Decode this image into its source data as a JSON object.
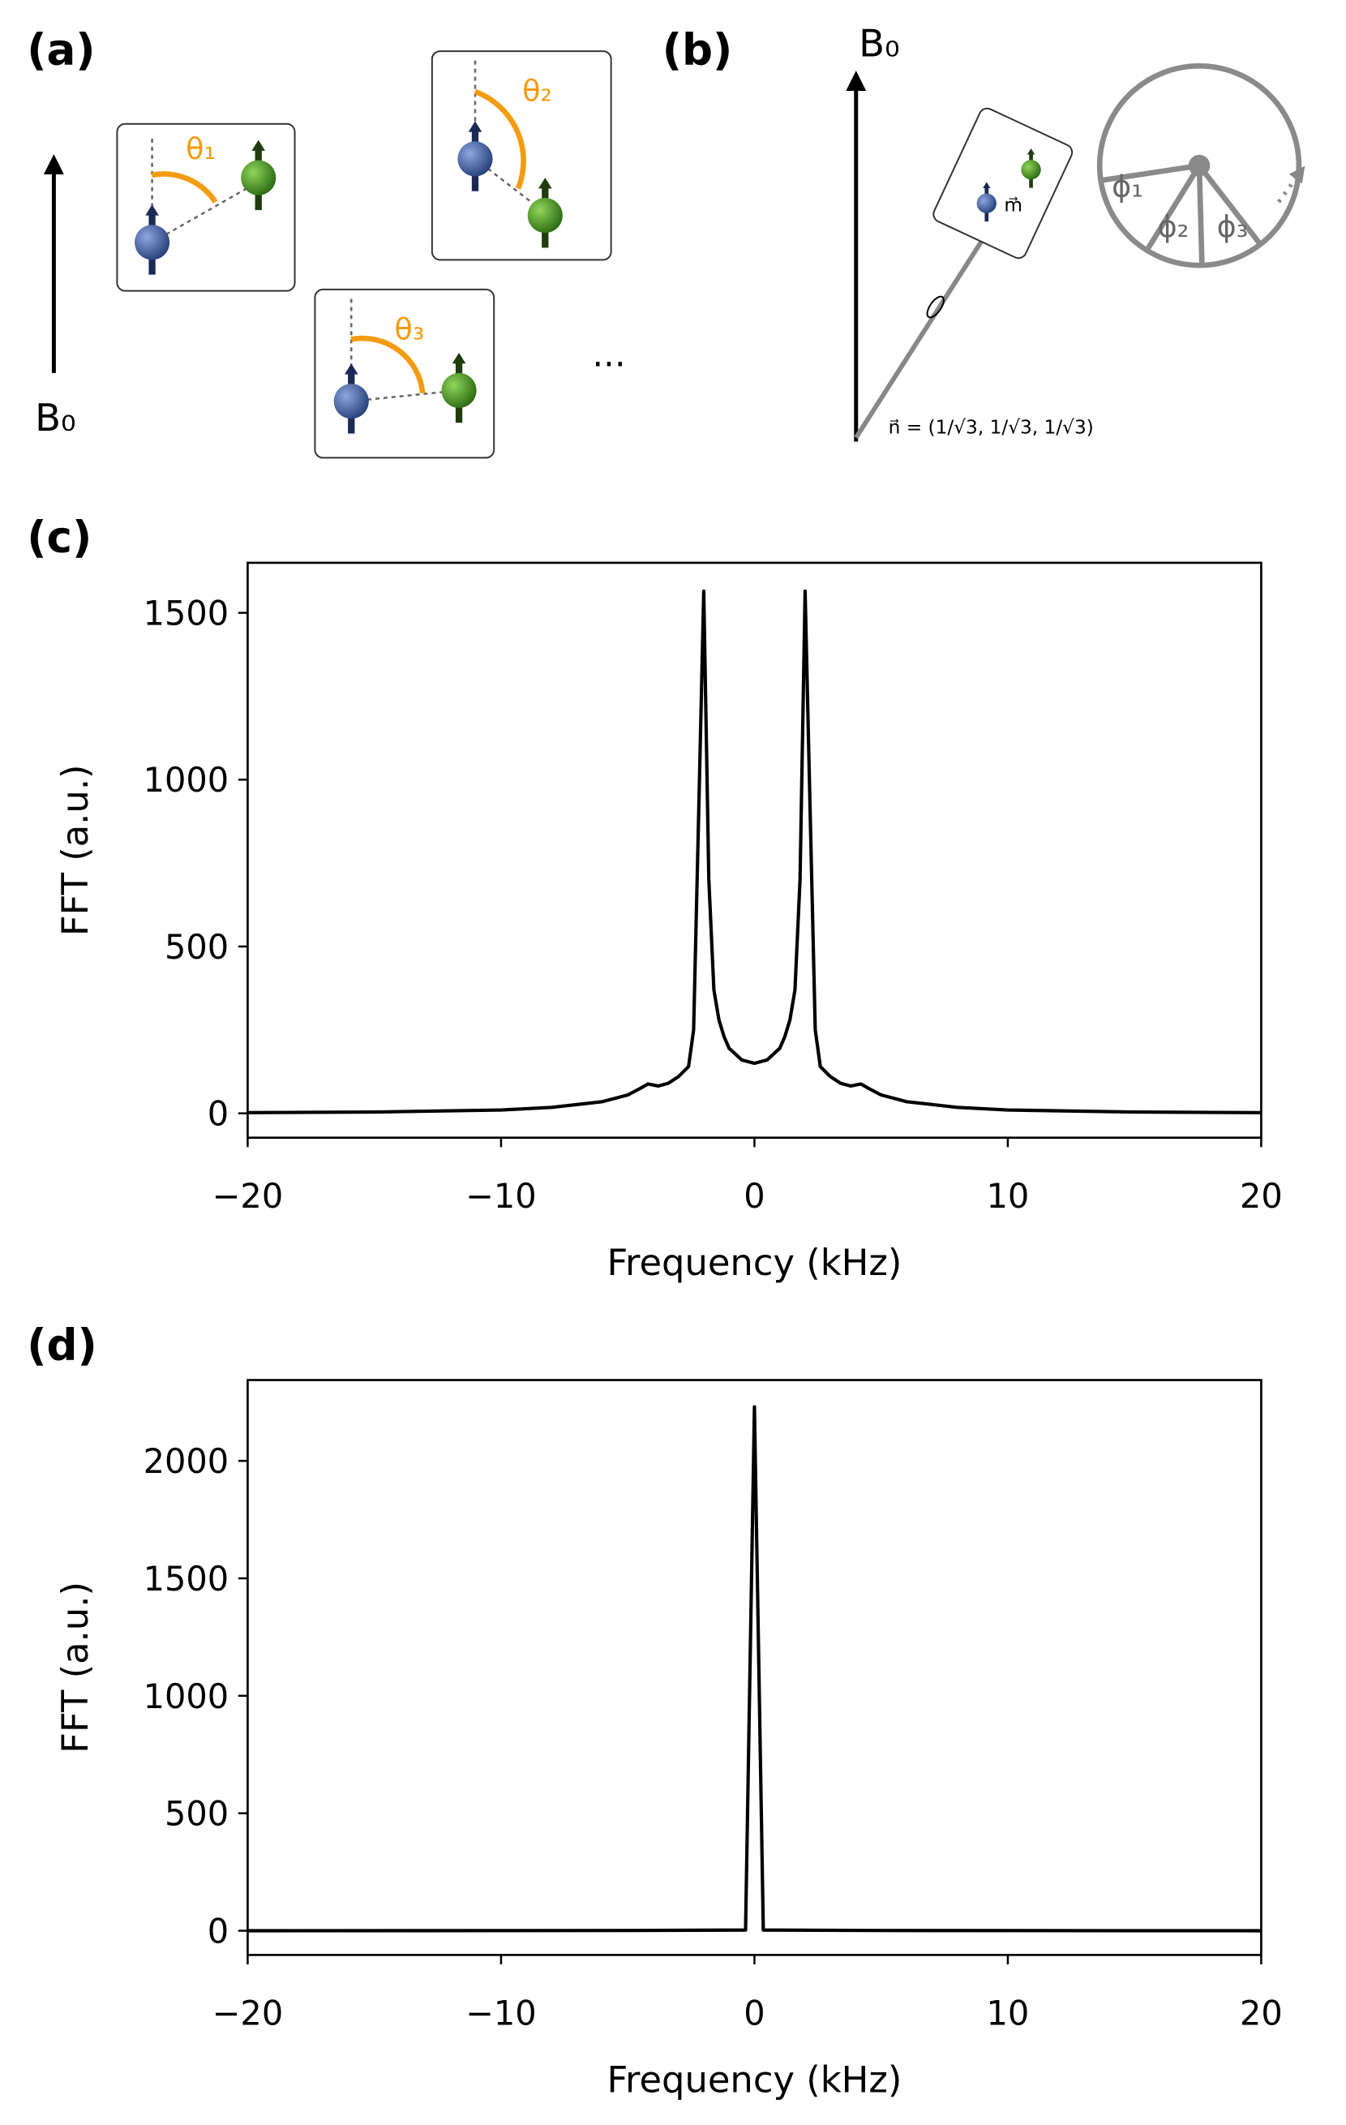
{
  "panel_labels": [
    "(a)",
    "(b)"
  ],
  "diagram_a": {
    "field_label": "B₀",
    "angles": [
      "θ₁",
      "θ₂",
      "θ₃"
    ],
    "ellipsis": "..."
  },
  "diagram_b": {
    "field_label": "B₀",
    "moment_label": "m⃗",
    "axis_label": "n⃗ = (1/√3, 1/√3, 1/√3)",
    "phases": [
      "ϕ₁",
      "ϕ₂",
      "ϕ₃"
    ]
  },
  "chart_data": [
    {
      "type": "line",
      "panel_label": "(c)",
      "xlabel": "Frequency (kHz)",
      "ylabel": "FFT (a.u.)",
      "color": "#000000",
      "x": [
        -20,
        -15,
        -10,
        -8,
        -6,
        -5,
        -4.5,
        -4.2,
        -3.8,
        -3.4,
        -3,
        -2.6,
        -2.4,
        -2.2,
        -2,
        -1.8,
        -1.6,
        -1.4,
        -1.2,
        -1,
        -0.5,
        0,
        0.5,
        1,
        1.2,
        1.4,
        1.6,
        1.8,
        2,
        2.2,
        2.4,
        2.6,
        3,
        3.4,
        3.8,
        4.2,
        4.5,
        5,
        6,
        8,
        10,
        15,
        20
      ],
      "values": [
        2,
        4,
        10,
        18,
        35,
        55,
        75,
        88,
        82,
        90,
        110,
        140,
        250,
        900,
        1565,
        700,
        370,
        280,
        230,
        195,
        160,
        150,
        160,
        195,
        230,
        280,
        370,
        700,
        1565,
        900,
        250,
        140,
        110,
        90,
        82,
        88,
        75,
        55,
        35,
        18,
        10,
        4,
        2
      ],
      "xlim": [
        -20,
        20
      ],
      "ylim": [
        -73,
        1650
      ],
      "xticks": [
        {
          "value": -20,
          "label": "−20"
        },
        {
          "value": -10,
          "label": "−10"
        },
        0,
        10,
        20
      ],
      "yticks": [
        0,
        500,
        1000,
        1500
      ]
    },
    {
      "type": "line",
      "panel_label": "(d)",
      "xlabel": "Frequency (kHz)",
      "ylabel": "FFT (a.u.)",
      "color": "#000000",
      "x": [
        -20,
        -5,
        -0.35,
        0,
        0.35,
        5,
        20
      ],
      "values": [
        0,
        1,
        3,
        2230,
        3,
        1,
        0
      ],
      "xlim": [
        -20,
        20
      ],
      "ylim": [
        -103,
        2344
      ],
      "xticks": [
        {
          "value": -20,
          "label": "−20"
        },
        {
          "value": -10,
          "label": "−10"
        },
        0,
        10,
        20
      ],
      "yticks": [
        0,
        500,
        1000,
        1500,
        2000
      ]
    }
  ]
}
